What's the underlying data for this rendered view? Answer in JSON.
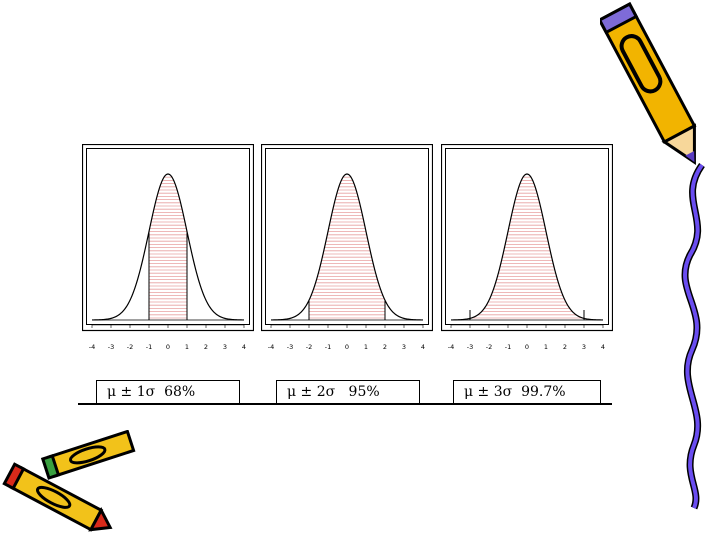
{
  "chart_data": [
    {
      "type": "area",
      "x": [
        -4,
        -3.5,
        -3,
        -2.5,
        -2,
        -1.5,
        -1,
        -0.5,
        0,
        0.5,
        1,
        1.5,
        2,
        2.5,
        3,
        3.5,
        4
      ],
      "values": [
        0.0001,
        0.0009,
        0.0044,
        0.0175,
        0.054,
        0.1295,
        0.242,
        0.3521,
        0.3989,
        0.3521,
        0.242,
        0.1295,
        0.054,
        0.0175,
        0.0044,
        0.0009,
        0.0001
      ],
      "xlim": [
        -4,
        4
      ],
      "xticks": [
        "-4",
        "-3",
        "-2",
        "-1",
        "0",
        "1",
        "2",
        "3",
        "4"
      ],
      "shaded_interval": [
        -1,
        1
      ],
      "vertical_markers": [
        -1,
        1
      ],
      "label": "μ ± 1σ  68%"
    },
    {
      "type": "area",
      "x": [
        -4,
        -3.5,
        -3,
        -2.5,
        -2,
        -1.5,
        -1,
        -0.5,
        0,
        0.5,
        1,
        1.5,
        2,
        2.5,
        3,
        3.5,
        4
      ],
      "values": [
        0.0001,
        0.0009,
        0.0044,
        0.0175,
        0.054,
        0.1295,
        0.242,
        0.3521,
        0.3989,
        0.3521,
        0.242,
        0.1295,
        0.054,
        0.0175,
        0.0044,
        0.0009,
        0.0001
      ],
      "xlim": [
        -4,
        4
      ],
      "xticks": [
        "-4",
        "-3",
        "-2",
        "-1",
        "0",
        "1",
        "2",
        "3",
        "4"
      ],
      "shaded_interval": [
        -2,
        2
      ],
      "vertical_markers": [
        -2,
        2
      ],
      "label": "μ ± 2σ   95%"
    },
    {
      "type": "area",
      "x": [
        -4,
        -3.5,
        -3,
        -2.5,
        -2,
        -1.5,
        -1,
        -0.5,
        0,
        0.5,
        1,
        1.5,
        2,
        2.5,
        3,
        3.5,
        4
      ],
      "values": [
        0.0001,
        0.0009,
        0.0044,
        0.0175,
        0.054,
        0.1295,
        0.242,
        0.3521,
        0.3989,
        0.3521,
        0.242,
        0.1295,
        0.054,
        0.0175,
        0.0044,
        0.0009,
        0.0001
      ],
      "xlim": [
        -4,
        4
      ],
      "xticks": [
        "-4",
        "-3",
        "-2",
        "-1",
        "0",
        "1",
        "2",
        "3",
        "4"
      ],
      "shaded_interval": [
        -3,
        3
      ],
      "vertical_markers": [
        -3,
        3
      ],
      "label": "μ ± 3σ  99.7%"
    }
  ],
  "colors": {
    "curve": "#000000",
    "shading": "#e8a0a0",
    "frame": "#000000"
  },
  "icons": [
    "pencil-clipart-icon",
    "crayons-clipart-icon"
  ]
}
